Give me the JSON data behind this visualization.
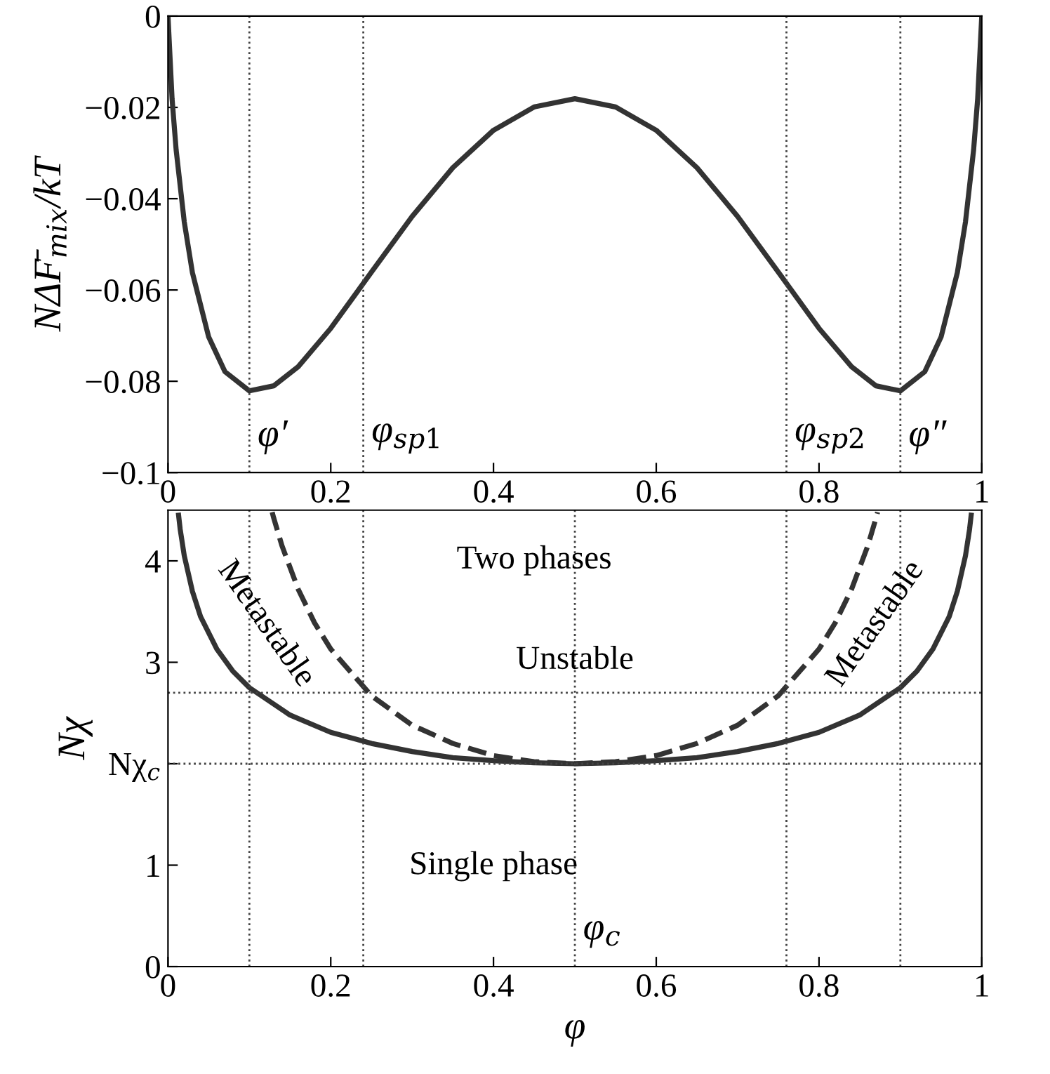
{
  "chart_data": [
    {
      "type": "line",
      "ylabel": "NΔF̄$_{mix}$/kT",
      "series": [
        {
          "color": "#333333",
          "x": [
            0,
            0.005,
            0.01,
            0.02,
            0.03,
            0.05,
            0.07,
            0.1,
            0.13,
            0.16,
            0.2,
            0.25,
            0.3,
            0.35,
            0.4,
            0.45,
            0.5,
            0.55,
            0.6,
            0.65,
            0.7,
            0.75,
            0.8,
            0.84,
            0.87,
            0.9,
            0.93,
            0.95,
            0.97,
            0.98,
            0.99,
            0.995,
            1
          ],
          "values": [
            0,
            -0.0181,
            -0.0293,
            -0.0451,
            -0.0562,
            -0.0703,
            -0.0779,
            -0.0821,
            -0.081,
            -0.0768,
            -0.0684,
            -0.0561,
            -0.0439,
            -0.0332,
            -0.025,
            -0.0199,
            -0.0181,
            -0.0199,
            -0.025,
            -0.0332,
            -0.0439,
            -0.0561,
            -0.0684,
            -0.0768,
            -0.081,
            -0.0821,
            -0.0779,
            -0.0703,
            -0.0562,
            -0.0451,
            -0.0293,
            -0.0181,
            0
          ]
        }
      ],
      "xlim": [
        0,
        1
      ],
      "ylim": [
        -0.1,
        0
      ],
      "xticks": [
        0,
        0.2,
        0.4,
        0.6,
        0.8,
        1
      ],
      "yticks": [
        0,
        {
          "value": -0.02,
          "label": "−0.02"
        },
        {
          "value": -0.04,
          "label": "−0.04"
        },
        {
          "value": -0.06,
          "label": "−0.06"
        },
        {
          "value": -0.08,
          "label": "−0.08"
        },
        {
          "value": -0.1,
          "label": "−0.1"
        }
      ],
      "ref_lines": [
        {
          "axis": "x",
          "value": 0.1,
          "label": "φ′",
          "line_style": "dotted"
        },
        {
          "axis": "x",
          "value": 0.24,
          "label": "φ$_{sp1}$",
          "line_style": "dotted"
        },
        {
          "axis": "x",
          "value": 0.76,
          "label": "φ$_{sp2}$",
          "line_style": "dotted"
        },
        {
          "axis": "x",
          "value": 0.9,
          "label": "φ″",
          "line_style": "dotted"
        }
      ],
      "grid": false,
      "legend": false
    },
    {
      "type": "line",
      "xlabel": "φ",
      "ylabel": "Nχ",
      "series": [
        {
          "color": "#333333",
          "line_style": "solid",
          "x": [
            0.013,
            0.015,
            0.02,
            0.03,
            0.04,
            0.06,
            0.08,
            0.1,
            0.15,
            0.2,
            0.25,
            0.3,
            0.35,
            0.4,
            0.45,
            0.5,
            0.55,
            0.6,
            0.65,
            0.7,
            0.75,
            0.8,
            0.85,
            0.9,
            0.92,
            0.94,
            0.96,
            0.97,
            0.98,
            0.985,
            0.987
          ],
          "values": [
            4.45,
            4.31,
            4.05,
            3.7,
            3.45,
            3.13,
            2.91,
            2.75,
            2.48,
            2.31,
            2.2,
            2.12,
            2.06,
            2.03,
            2.01,
            2,
            2.01,
            2.03,
            2.06,
            2.12,
            2.2,
            2.31,
            2.48,
            2.75,
            2.91,
            3.13,
            3.45,
            3.7,
            4.05,
            4.31,
            4.45
          ]
        },
        {
          "color": "#333333",
          "line_style": "dashed",
          "x": [
            0.128,
            0.13,
            0.14,
            0.16,
            0.18,
            0.2,
            0.25,
            0.3,
            0.35,
            0.4,
            0.45,
            0.5,
            0.55,
            0.6,
            0.65,
            0.7,
            0.75,
            0.8,
            0.82,
            0.84,
            0.86,
            0.87,
            0.872
          ],
          "values": [
            4.48,
            4.42,
            4.15,
            3.72,
            3.39,
            3.13,
            2.67,
            2.38,
            2.2,
            2.08,
            2.02,
            2,
            2.02,
            2.08,
            2.2,
            2.38,
            2.67,
            3.13,
            3.39,
            3.72,
            4.15,
            4.42,
            4.48
          ]
        }
      ],
      "xlim": [
        0,
        1
      ],
      "ylim": [
        0,
        4.5
      ],
      "xticks": [
        0,
        0.2,
        0.4,
        0.6,
        0.8,
        1
      ],
      "yticks": [
        0,
        1,
        {
          "value": 2,
          "label": "Nχ$_{c}$"
        },
        3,
        4
      ],
      "ref_lines": [
        {
          "axis": "x",
          "value": 0.1,
          "line_style": "dotted"
        },
        {
          "axis": "x",
          "value": 0.24,
          "line_style": "dotted"
        },
        {
          "axis": "x",
          "value": 0.76,
          "line_style": "dotted"
        },
        {
          "axis": "x",
          "value": 0.9,
          "line_style": "dotted"
        },
        {
          "axis": "x",
          "value": 0.5,
          "label": "φ$_{c}$",
          "line_style": "dotted"
        },
        {
          "axis": "y",
          "value": 2,
          "line_style": "dotted"
        },
        {
          "axis": "y",
          "value": 2.7,
          "line_style": "dotted"
        }
      ],
      "annotations": [
        "Two phases",
        "Unstable",
        "Metastable",
        "Metastable",
        "Single phase"
      ],
      "grid": false,
      "legend": false
    }
  ]
}
